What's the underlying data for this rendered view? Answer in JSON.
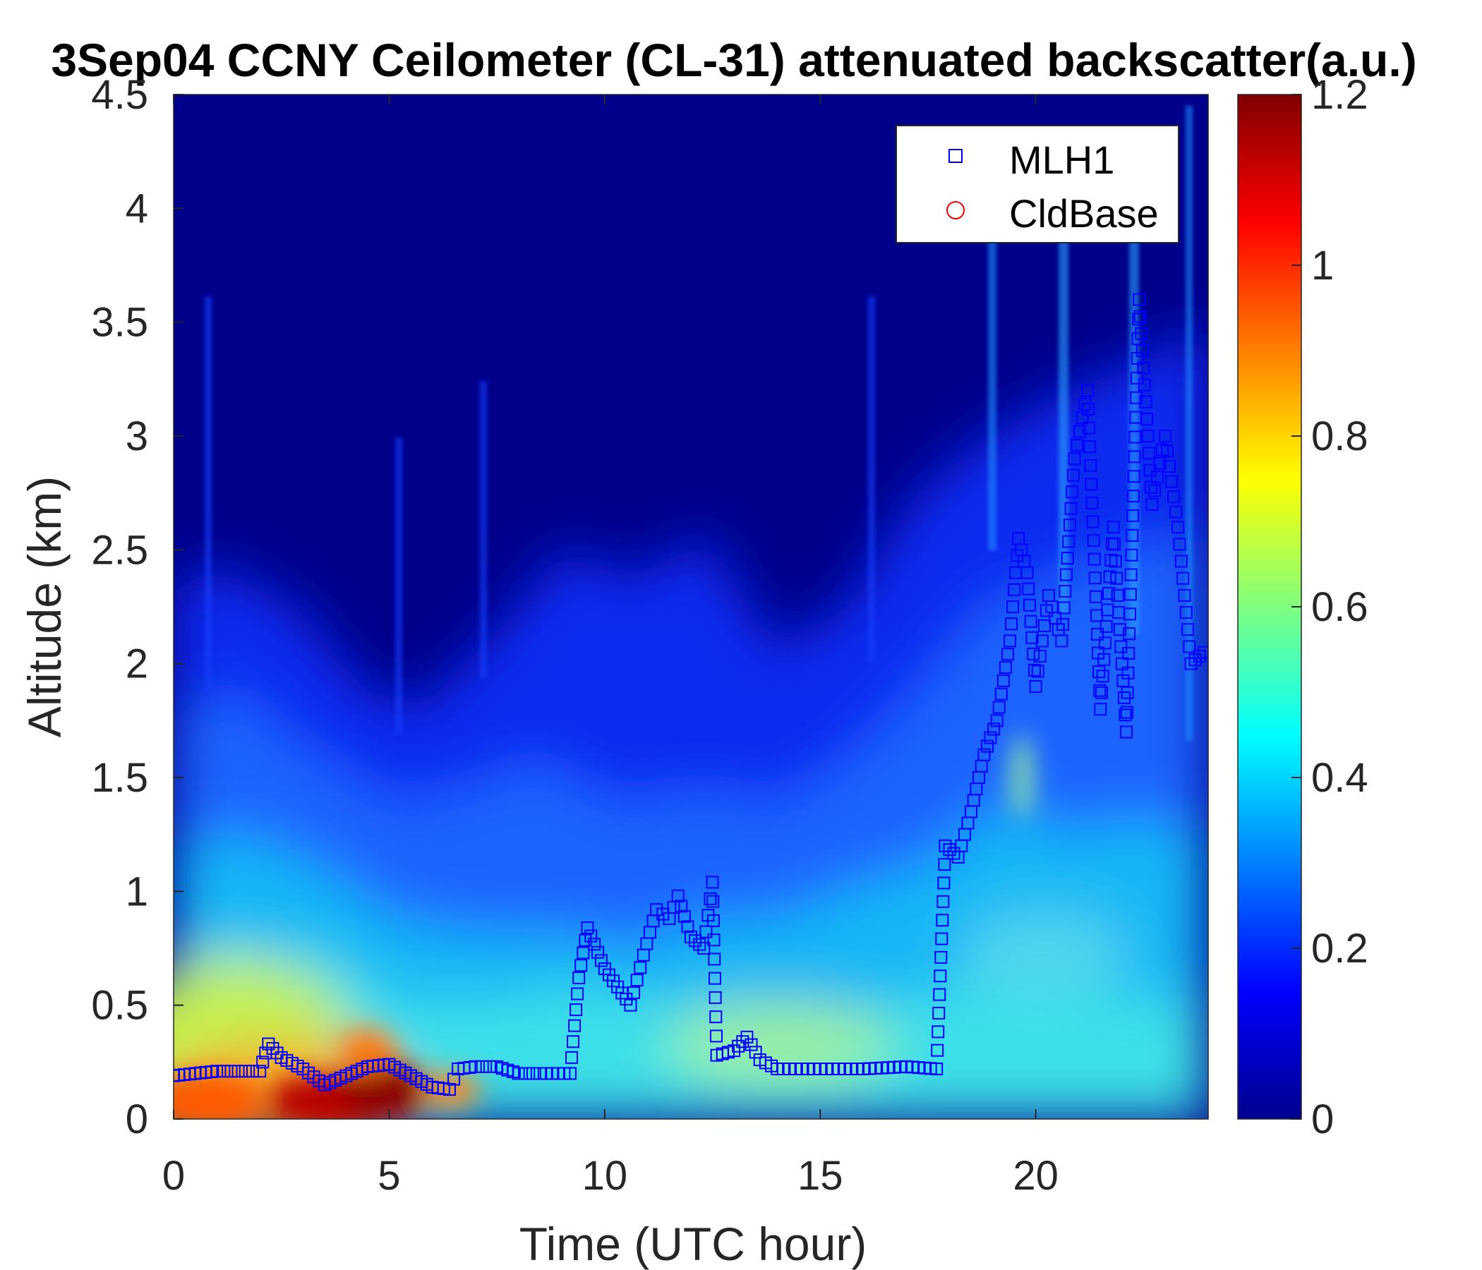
{
  "chart_data": {
    "type": "heatmap",
    "title": "3Sep04 CCNY Ceilometer (CL-31) attenuated backscatter(a.u.)",
    "xlabel": "Time (UTC hour)",
    "ylabel": "Altitude (km)",
    "xlim": [
      0,
      24
    ],
    "ylim": [
      0,
      4.5
    ],
    "xticks": [
      "0",
      "5",
      "10",
      "15",
      "20"
    ],
    "xtick_values": [
      0,
      5,
      10,
      15,
      20
    ],
    "yticks": [
      "0",
      "0.5",
      "1",
      "1.5",
      "2",
      "2.5",
      "3",
      "3.5",
      "4",
      "4.5"
    ],
    "ytick_values": [
      0,
      0.5,
      1,
      1.5,
      2,
      2.5,
      3,
      3.5,
      4,
      4.5
    ],
    "colorbar": {
      "range": [
        0,
        1.2
      ],
      "ticks": [
        "0",
        "0.2",
        "0.4",
        "0.6",
        "0.8",
        "1",
        "1.2"
      ],
      "tick_values": [
        0,
        0.2,
        0.4,
        0.6,
        0.8,
        1.0,
        1.2
      ],
      "colormap": "jet"
    },
    "legend": {
      "placement": "top-right",
      "entries": [
        {
          "label": "MLH1",
          "marker": "square",
          "color": "#0000ff"
        },
        {
          "label": "CldBase",
          "marker": "circle",
          "color": "#ff0000"
        }
      ]
    },
    "series": [
      {
        "name": "MLH1",
        "x": [
          0.0,
          0.5,
          1.0,
          1.5,
          2.0,
          2.2,
          2.5,
          3.0,
          3.5,
          4.0,
          4.5,
          5.0,
          5.5,
          6.0,
          6.4,
          6.6,
          7.0,
          7.5,
          8.0,
          8.5,
          9.2,
          9.4,
          9.6,
          10.0,
          10.3,
          10.6,
          10.9,
          11.2,
          11.5,
          11.7,
          12.0,
          12.3,
          12.5,
          12.6,
          13.0,
          13.3,
          13.6,
          14.0,
          15.0,
          16.0,
          17.0,
          17.7,
          17.9,
          18.2,
          18.5,
          18.8,
          19.1,
          19.4,
          19.6,
          19.8,
          20.0,
          20.3,
          20.6,
          20.9,
          21.2,
          21.5,
          21.8,
          22.1,
          22.4,
          22.7,
          23.0,
          23.3,
          23.6,
          23.9
        ],
        "y": [
          0.19,
          0.2,
          0.21,
          0.21,
          0.21,
          0.33,
          0.27,
          0.22,
          0.15,
          0.19,
          0.23,
          0.24,
          0.19,
          0.14,
          0.13,
          0.22,
          0.23,
          0.23,
          0.2,
          0.2,
          0.2,
          0.62,
          0.84,
          0.66,
          0.58,
          0.5,
          0.72,
          0.92,
          0.88,
          0.98,
          0.8,
          0.75,
          1.04,
          0.28,
          0.3,
          0.36,
          0.26,
          0.22,
          0.22,
          0.22,
          0.23,
          0.22,
          1.2,
          1.15,
          1.35,
          1.6,
          1.75,
          2.1,
          2.55,
          2.4,
          1.9,
          2.3,
          2.1,
          2.9,
          3.2,
          1.8,
          2.6,
          1.7,
          3.6,
          2.7,
          3.0,
          2.6,
          2.0,
          2.05
        ]
      },
      {
        "name": "CldBase",
        "x": [],
        "y": []
      }
    ],
    "heatmap_description_points": [
      {
        "x": 0.5,
        "y": 0.1,
        "value": 0.95
      },
      {
        "x": 4.5,
        "y": 0.1,
        "value": 1.15
      },
      {
        "x": 1.0,
        "y": 0.4,
        "value": 0.65
      },
      {
        "x": 1.0,
        "y": 1.0,
        "value": 0.4
      },
      {
        "x": 10.0,
        "y": 0.3,
        "value": 0.5
      },
      {
        "x": 20.0,
        "y": 1.0,
        "value": 0.4
      },
      {
        "x": 20.0,
        "y": 2.5,
        "value": 0.3
      },
      {
        "x": 10.0,
        "y": 2.5,
        "value": 0.05
      },
      {
        "x": 12.0,
        "y": 4.0,
        "value": 0.0
      }
    ]
  }
}
